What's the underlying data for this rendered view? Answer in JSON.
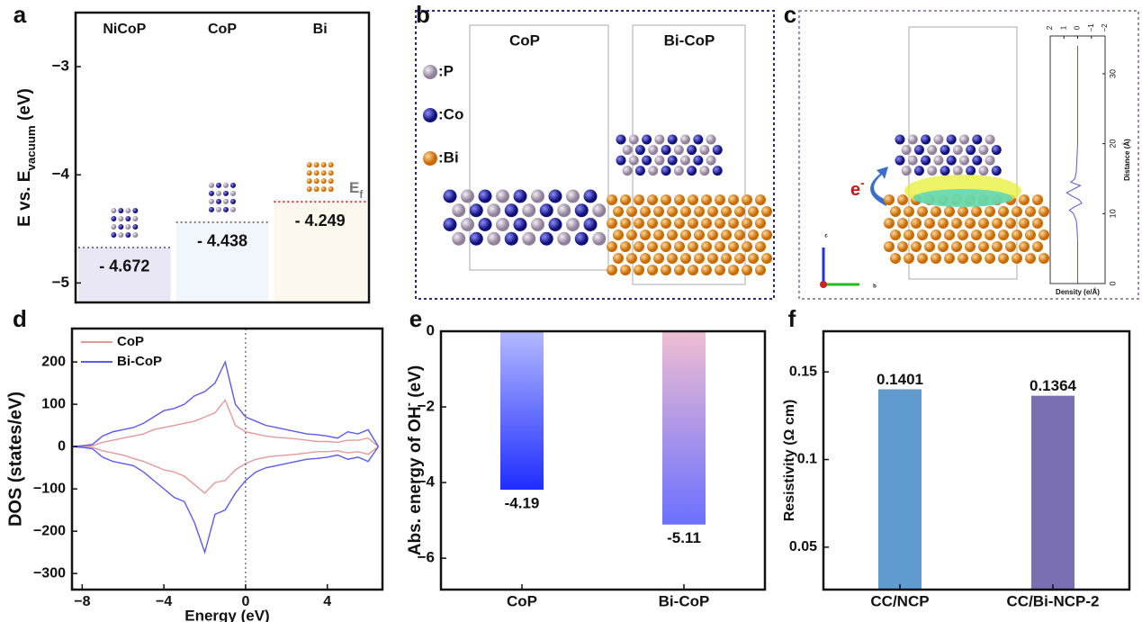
{
  "panel_labels": [
    "a",
    "b",
    "c",
    "d",
    "e",
    "f"
  ],
  "panel_b": {
    "titles": [
      "CoP",
      "Bi-CoP"
    ],
    "legend": [
      ":P",
      ":Co",
      ":Bi"
    ]
  },
  "panel_c": {
    "electron_label": [
      "e",
      "-"
    ],
    "axis_labels": [
      "c",
      "b"
    ]
  },
  "chart_data": [
    {
      "type": "level",
      "categories": [
        "NiCoP",
        "CoP",
        "Bi"
      ],
      "values": [
        -4.672,
        -4.438,
        -4.249
      ],
      "value_labels": [
        "- 4.672",
        "- 4.438",
        "- 4.249"
      ],
      "colors": [
        "#e9e7f6",
        "#f1f5fc",
        "#fdf8ee"
      ],
      "line_colors": [
        "#777777",
        "#777777",
        "#d33333"
      ],
      "ylabel": [
        "E vs. E",
        "vacuum",
        " (eV)"
      ],
      "annotation": [
        "E",
        "f"
      ],
      "ylim": [
        -5.18,
        -2.5
      ],
      "yticks": [
        {
          "value": -3,
          "label": "−3"
        },
        {
          "value": -4,
          "label": "−4"
        },
        {
          "value": -5,
          "label": "−5"
        }
      ]
    },
    {
      "type": "line",
      "xlabel": "Energy (eV)",
      "ylabel": "DOS (states/eV)",
      "legend": "upper left",
      "vline": 0,
      "x": [
        -8.5,
        -8,
        -7.5,
        -7,
        -6.5,
        -6,
        -5.5,
        -5,
        -4.5,
        -4,
        -3.5,
        -3,
        -2.5,
        -2,
        -1.5,
        -1,
        -0.5,
        0,
        0.5,
        1,
        1.5,
        2,
        2.5,
        3,
        3.5,
        4,
        4.5,
        5,
        5.5,
        6,
        6.5
      ],
      "series": [
        {
          "name": "CoP",
          "color": "#e39a9a",
          "values": [
            0,
            0,
            2,
            10,
            15,
            20,
            25,
            30,
            40,
            45,
            50,
            55,
            60,
            70,
            80,
            110,
            50,
            35,
            30,
            25,
            22,
            20,
            18,
            15,
            12,
            12,
            10,
            15,
            15,
            20,
            0
          ],
          "values_down": [
            0,
            0,
            -2,
            -10,
            -15,
            -20,
            -28,
            -35,
            -45,
            -55,
            -60,
            -70,
            -90,
            -110,
            -85,
            -80,
            -55,
            -40,
            -30,
            -25,
            -22,
            -20,
            -18,
            -15,
            -12,
            -12,
            -10,
            -15,
            -12,
            -18,
            0
          ]
        },
        {
          "name": "Bi-CoP",
          "color": "#5a5af0",
          "values": [
            0,
            2,
            5,
            25,
            35,
            40,
            45,
            55,
            70,
            85,
            90,
            100,
            120,
            130,
            150,
            200,
            100,
            70,
            60,
            50,
            45,
            40,
            35,
            30,
            28,
            25,
            20,
            35,
            30,
            40,
            0
          ],
          "values_down": [
            0,
            -2,
            -5,
            -25,
            -35,
            -40,
            -45,
            -60,
            -80,
            -100,
            -120,
            -130,
            -180,
            -250,
            -160,
            -150,
            -110,
            -80,
            -60,
            -50,
            -45,
            -40,
            -35,
            -30,
            -28,
            -25,
            -20,
            -30,
            -25,
            -35,
            0
          ]
        }
      ],
      "xlim": [
        -8.5,
        6.7
      ],
      "xticks": [
        {
          "value": -8,
          "label": "−8"
        },
        {
          "value": -4,
          "label": "−4"
        },
        0,
        4
      ],
      "ylim": [
        -338,
        279
      ],
      "yticks": [
        {
          "value": -300,
          "label": "−300"
        },
        {
          "value": -200,
          "label": "−200"
        },
        {
          "value": -100,
          "label": "−100"
        },
        0,
        100,
        200
      ]
    },
    {
      "type": "bar",
      "categories": [
        "CoP",
        "Bi-CoP"
      ],
      "values": [
        -4.19,
        -5.11
      ],
      "colors": [
        [
          "#b3b9ff",
          "#1f2dff"
        ],
        [
          "#f0bdd2",
          "#6b70ff"
        ]
      ],
      "ylabel": [
        "Abs. energy of OH",
        "-",
        " (eV)"
      ],
      "ylim": [
        -6.83,
        0
      ],
      "yticks": [
        0,
        {
          "value": -2,
          "label": "−2"
        },
        {
          "value": -4,
          "label": "−4"
        },
        {
          "value": -6,
          "label": "−6"
        }
      ]
    },
    {
      "type": "bar",
      "categories": [
        "CC/NCP",
        "CC/Bi-NCP-2"
      ],
      "values": [
        0.1401,
        0.1364
      ],
      "colors": [
        "#5f9bce",
        "#7b6fb3"
      ],
      "ylabel": [
        "Resistivity (Ω cm)"
      ],
      "ylim": [
        0.0258,
        0.1732
      ],
      "yticks": [
        0.05,
        0.1,
        0.15
      ]
    },
    {
      "type": "profile",
      "xlabel": "Density (e/Å)",
      "ylabel": "Distance (Å)",
      "color": "#5a5ad0",
      "distance": [
        0,
        2,
        4,
        6,
        8,
        9,
        10,
        10.5,
        11,
        11.5,
        12,
        12.5,
        13,
        13.5,
        14,
        14.5,
        15,
        16,
        18,
        20,
        24,
        28,
        32,
        34
      ],
      "values": [
        0,
        0,
        0,
        0,
        0.05,
        0.1,
        0.3,
        0.6,
        0.2,
        -0.3,
        -0.1,
        0.4,
        0.8,
        0.3,
        -0.2,
        0.5,
        0.2,
        0.1,
        0.05,
        0,
        0,
        0,
        0,
        0
      ],
      "xlim": [
        2,
        -2
      ],
      "xticks": [
        2,
        1,
        0,
        {
          "value": -1,
          "label": "−1"
        },
        {
          "value": -2,
          "label": "−2"
        }
      ],
      "ylim": [
        0,
        35.4
      ],
      "yticks": [
        0,
        10,
        20,
        30
      ]
    }
  ]
}
